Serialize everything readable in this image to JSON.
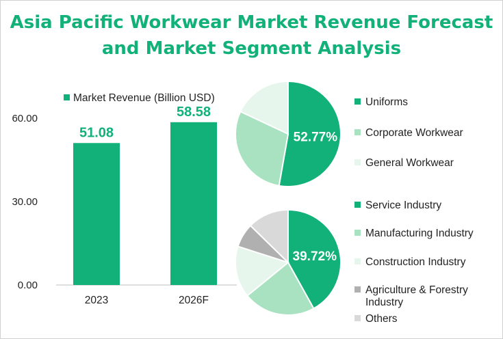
{
  "title": {
    "line1": "Asia Pacific Workwear Market Revenue Forecast",
    "line2": "and Market Segment Analysis"
  },
  "colors": {
    "accent": "#12b17a",
    "light_green": "#a8e2c0",
    "pale_green": "#e6f6ec",
    "gray": "#b0b0b0",
    "light_gray": "#d9d9d9"
  },
  "chart_data": [
    {
      "type": "bar",
      "categories": [
        "2023",
        "2026F"
      ],
      "series": [
        {
          "name": "Market Revenue (Billion USD)",
          "values": [
            51.08,
            58.58
          ]
        }
      ],
      "data_labels": [
        "51.08",
        "58.58"
      ],
      "yticks": [
        "0.00",
        "30.00",
        "60.00"
      ],
      "ylim": [
        0,
        70
      ],
      "legend": "top"
    },
    {
      "type": "pie",
      "labels": [
        "Uniforms",
        "Corporate Workwear",
        "General Workwear"
      ],
      "values": [
        52.77,
        29.23,
        18.0
      ],
      "colors": [
        "#12b17a",
        "#a8e2c0",
        "#e6f6ec"
      ],
      "highlight_label": "52.77%",
      "legend": "right"
    },
    {
      "type": "pie",
      "labels": [
        "Service Industry",
        "Manufacturing Industry",
        "Construction Industry",
        "Agriculture & Forestry Industry",
        "Others"
      ],
      "legend_lines": [
        [
          "Service Industry"
        ],
        [
          "Manufacturing Industry"
        ],
        [
          "Construction Industry"
        ],
        [
          "Agriculture & Forestry",
          "Industry"
        ],
        [
          "Others"
        ]
      ],
      "values": [
        39.72,
        21.0,
        15.0,
        7.0,
        12.0
      ],
      "colors": [
        "#12b17a",
        "#a8e2c0",
        "#e6f6ec",
        "#b0b0b0",
        "#d9d9d9"
      ],
      "highlight_label": "39.72%",
      "legend": "right"
    }
  ]
}
